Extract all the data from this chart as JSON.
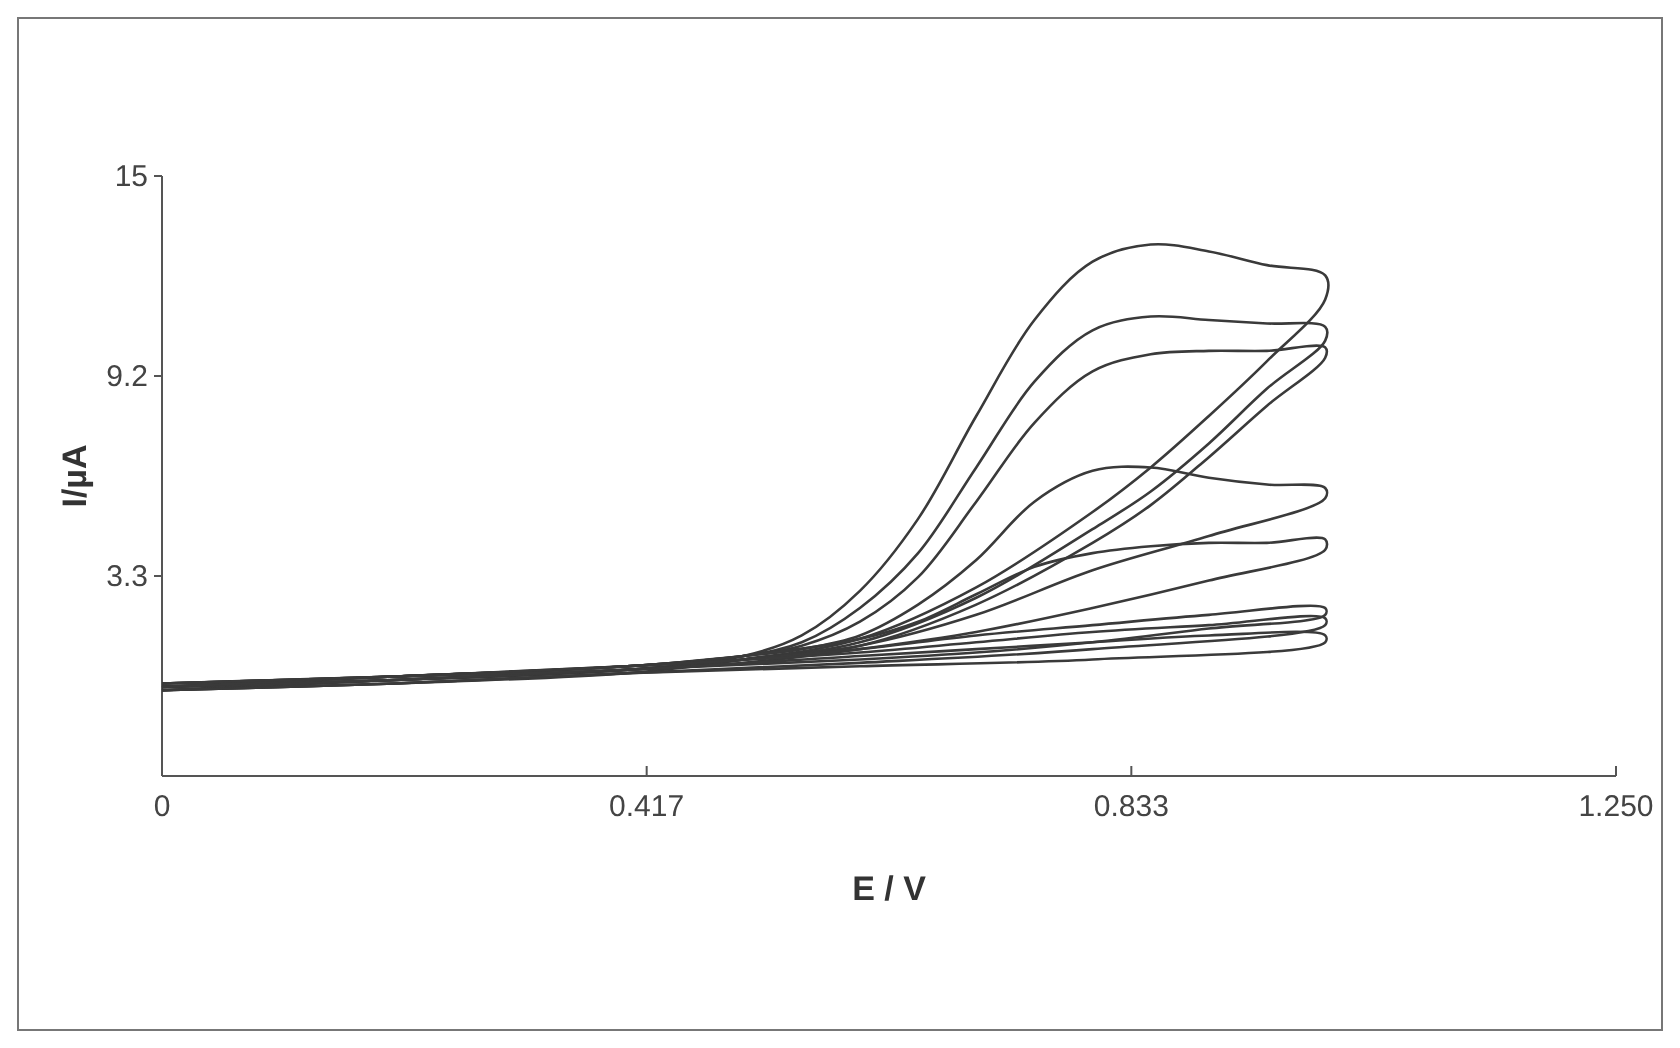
{
  "chart_data": {
    "type": "line",
    "xlabel": "E / V",
    "ylabel": "I/µA",
    "xlim": [
      0,
      1.25
    ],
    "ylim": [
      -2.5,
      15
    ],
    "xticks": [
      0,
      {
        "value": 0.41667,
        "label": "0.417"
      },
      {
        "value": 0.83333,
        "label": "0.833"
      },
      {
        "value": 1.25,
        "label": "1.250"
      }
    ],
    "yticks": [
      {
        "value": 3.3333,
        "label": "3.3"
      },
      {
        "value": 9.1667,
        "label": "9.2"
      },
      15
    ],
    "grid": false,
    "line_style": "solid",
    "series": [
      {
        "color": "#3a3a3a",
        "x": [
          0,
          0.2,
          0.4,
          0.5,
          0.55,
          0.6,
          0.65,
          0.7,
          0.75,
          0.8,
          0.85,
          0.9,
          0.95,
          1.0,
          1.0,
          0.95,
          0.9,
          0.85,
          0.8,
          0.7,
          0.6,
          0.5,
          0.4,
          0.2,
          0
        ],
        "values": [
          0.1,
          0.3,
          0.6,
          1.0,
          1.6,
          2.9,
          5.0,
          8.0,
          10.8,
          12.5,
          13.0,
          12.8,
          12.4,
          12.1,
          11.4,
          9.6,
          8.0,
          6.5,
          5.2,
          3.0,
          1.5,
          0.9,
          0.5,
          0.2,
          0.0
        ]
      },
      {
        "color": "#3a3a3a",
        "x": [
          0,
          0.2,
          0.4,
          0.5,
          0.55,
          0.6,
          0.65,
          0.7,
          0.75,
          0.8,
          0.85,
          0.9,
          0.95,
          1.0,
          1.0,
          0.95,
          0.9,
          0.85,
          0.8,
          0.7,
          0.6,
          0.5,
          0.4,
          0.2,
          0
        ],
        "values": [
          0.2,
          0.4,
          0.7,
          1.0,
          1.4,
          2.4,
          4.0,
          6.5,
          9.0,
          10.5,
          10.9,
          10.8,
          10.7,
          10.6,
          10.2,
          8.8,
          7.2,
          5.8,
          4.7,
          2.7,
          1.4,
          0.9,
          0.6,
          0.3,
          0.1
        ]
      },
      {
        "color": "#3a3a3a",
        "x": [
          0,
          0.2,
          0.4,
          0.5,
          0.55,
          0.6,
          0.65,
          0.7,
          0.75,
          0.8,
          0.85,
          0.9,
          0.95,
          1.0,
          1.0,
          0.95,
          0.9,
          0.85,
          0.8,
          0.7,
          0.6,
          0.5,
          0.4,
          0.2,
          0
        ],
        "values": [
          0.1,
          0.4,
          0.7,
          1.0,
          1.3,
          2.0,
          3.3,
          5.5,
          7.8,
          9.3,
          9.8,
          9.9,
          9.9,
          10.0,
          9.7,
          8.3,
          6.8,
          5.4,
          4.3,
          2.5,
          1.3,
          0.9,
          0.6,
          0.3,
          0.0
        ]
      },
      {
        "color": "#3a3a3a",
        "x": [
          0,
          0.2,
          0.4,
          0.5,
          0.55,
          0.6,
          0.65,
          0.7,
          0.75,
          0.8,
          0.85,
          0.9,
          0.95,
          1.0,
          1.0,
          0.9,
          0.8,
          0.7,
          0.6,
          0.5,
          0.4,
          0.2,
          0
        ],
        "values": [
          0.2,
          0.4,
          0.7,
          1.0,
          1.2,
          1.6,
          2.5,
          3.8,
          5.5,
          6.4,
          6.5,
          6.2,
          6.0,
          5.9,
          5.6,
          4.5,
          3.5,
          2.2,
          1.3,
          0.9,
          0.6,
          0.3,
          0.1
        ]
      },
      {
        "color": "#3a3a3a",
        "x": [
          0,
          0.2,
          0.4,
          0.5,
          0.6,
          0.65,
          0.7,
          0.75,
          0.8,
          0.85,
          0.9,
          0.95,
          1.0,
          1.0,
          0.9,
          0.8,
          0.7,
          0.6,
          0.5,
          0.4,
          0.2,
          0
        ],
        "values": [
          0.1,
          0.4,
          0.7,
          1.0,
          1.5,
          2.0,
          2.8,
          3.6,
          4.0,
          4.2,
          4.3,
          4.3,
          4.4,
          4.1,
          3.2,
          2.4,
          1.7,
          1.2,
          0.8,
          0.6,
          0.3,
          0.0
        ]
      },
      {
        "color": "#3a3a3a",
        "x": [
          0,
          0.2,
          0.4,
          0.5,
          0.6,
          0.7,
          0.8,
          0.9,
          1.0,
          1.0,
          0.9,
          0.8,
          0.7,
          0.6,
          0.4,
          0.2,
          0
        ],
        "values": [
          0.2,
          0.4,
          0.7,
          0.9,
          1.2,
          1.6,
          1.9,
          2.2,
          2.4,
          2.2,
          1.8,
          1.4,
          1.1,
          0.9,
          0.6,
          0.3,
          0.1
        ]
      },
      {
        "color": "#3a3a3a",
        "x": [
          0,
          0.2,
          0.4,
          0.6,
          0.7,
          0.8,
          0.9,
          1.0,
          1.0,
          0.8,
          0.6,
          0.4,
          0.2,
          0
        ],
        "values": [
          0.1,
          0.4,
          0.7,
          1.1,
          1.4,
          1.7,
          1.9,
          2.1,
          1.9,
          1.2,
          0.8,
          0.5,
          0.2,
          0.0
        ]
      },
      {
        "color": "#3a3a3a",
        "x": [
          0,
          0.2,
          0.4,
          0.6,
          0.7,
          0.8,
          0.9,
          1.0,
          1.0,
          0.8,
          0.6,
          0.4,
          0.2,
          0
        ],
        "values": [
          0.2,
          0.4,
          0.6,
          1.0,
          1.2,
          1.4,
          1.6,
          1.6,
          1.4,
          0.9,
          0.7,
          0.5,
          0.2,
          0.0
        ]
      }
    ]
  }
}
